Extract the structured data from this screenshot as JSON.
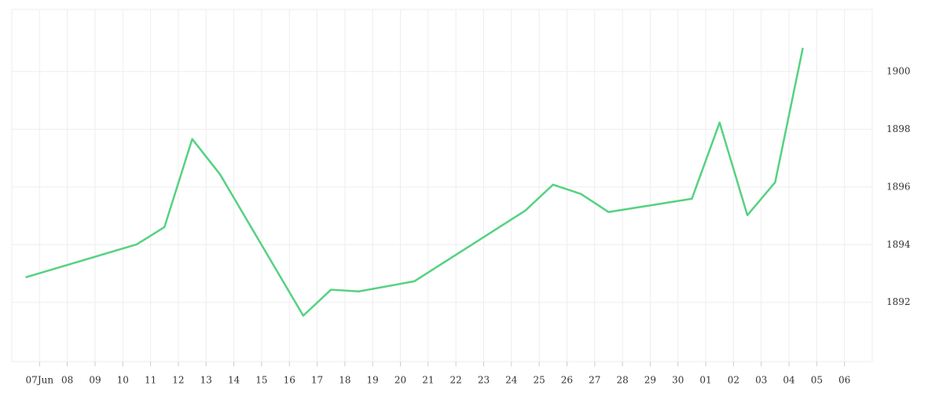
{
  "chart_data": {
    "type": "line",
    "x": [
      -0.5,
      3.5,
      4.5,
      5.5,
      6.5,
      9.5,
      10.5,
      11.5,
      13.5,
      17.5,
      18.5,
      19.5,
      20.5,
      23.5,
      24.5,
      25.5,
      26.5,
      27.5
    ],
    "series": [
      {
        "color": "#55d281",
        "values": [
          1892.87,
          1894.01,
          1894.61,
          1897.66,
          1896.44,
          1891.54,
          1892.44,
          1892.38,
          1892.73,
          1895.18,
          1896.08,
          1895.76,
          1895.13,
          1895.59,
          1898.23,
          1895.02,
          1896.16,
          1900.82
        ]
      }
    ],
    "xlim": [
      -1,
      30
    ],
    "xticks": [
      {
        "value": 0,
        "label": "07Jun"
      },
      {
        "value": 1,
        "label": "08"
      },
      {
        "value": 2,
        "label": "09"
      },
      {
        "value": 3,
        "label": "10"
      },
      {
        "value": 4,
        "label": "11"
      },
      {
        "value": 5,
        "label": "12"
      },
      {
        "value": 6,
        "label": "13"
      },
      {
        "value": 7,
        "label": "14"
      },
      {
        "value": 8,
        "label": "15"
      },
      {
        "value": 9,
        "label": "16"
      },
      {
        "value": 10,
        "label": "17"
      },
      {
        "value": 11,
        "label": "18"
      },
      {
        "value": 12,
        "label": "19"
      },
      {
        "value": 13,
        "label": "20"
      },
      {
        "value": 14,
        "label": "21"
      },
      {
        "value": 15,
        "label": "22"
      },
      {
        "value": 16,
        "label": "23"
      },
      {
        "value": 17,
        "label": "24"
      },
      {
        "value": 18,
        "label": "25"
      },
      {
        "value": 19,
        "label": "26"
      },
      {
        "value": 20,
        "label": "27"
      },
      {
        "value": 21,
        "label": "28"
      },
      {
        "value": 22,
        "label": "29"
      },
      {
        "value": 23,
        "label": "30"
      },
      {
        "value": 24,
        "label": "01"
      },
      {
        "value": 25,
        "label": "02"
      },
      {
        "value": 26,
        "label": "03"
      },
      {
        "value": 27,
        "label": "04"
      },
      {
        "value": 28,
        "label": "05"
      },
      {
        "value": 29,
        "label": "06"
      }
    ],
    "ylim": [
      1889.95,
      1902.15
    ],
    "yticks": [
      1892,
      1894,
      1896,
      1898,
      1900
    ],
    "grid": true,
    "y_axis_side": "right"
  }
}
